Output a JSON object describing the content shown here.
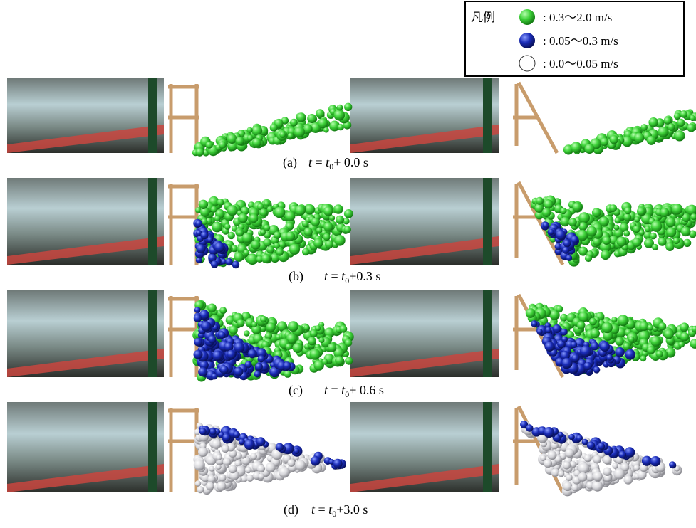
{
  "legend": {
    "title": "凡例",
    "items": [
      ": 0.3〜2.0 m/s",
      ": 0.05〜0.3 m/s",
      ": 0.0〜0.05 m/s"
    ]
  },
  "captions": [
    {
      "label": "(a)",
      "var": "t",
      "eq": " = ",
      "base": "t",
      "sub": "0",
      "rest": "+ 0.0 s"
    },
    {
      "label": "(b)",
      "var": "t",
      "eq": " = ",
      "base": "t",
      "sub": "0",
      "rest": "+0.3 s"
    },
    {
      "label": "(c)",
      "var": "t",
      "eq": " = ",
      "base": "t",
      "sub": "0",
      "rest": "+ 0.6 s"
    },
    {
      "label": "(d)",
      "var": "t",
      "eq": " = ",
      "base": "t",
      "sub": "0",
      "rest": "+3.0 s"
    }
  ]
}
